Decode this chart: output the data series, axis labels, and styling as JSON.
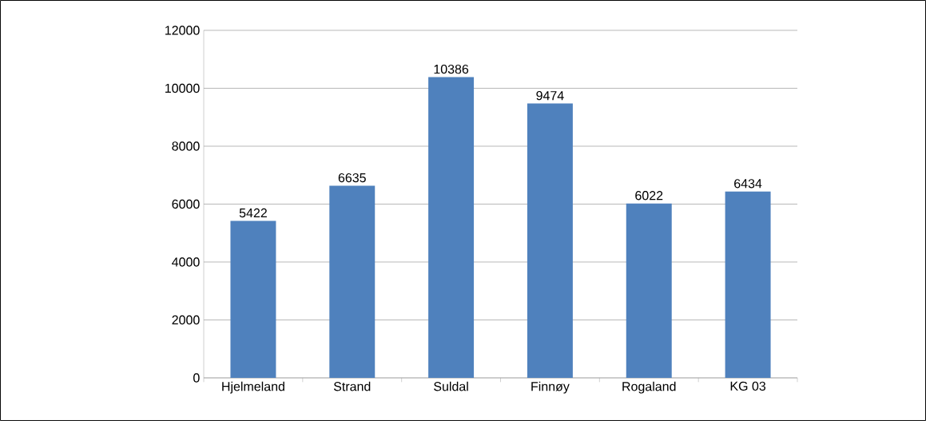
{
  "chart_data": {
    "type": "bar",
    "categories": [
      "Hjelmeland",
      "Strand",
      "Suldal",
      "Finnøy",
      "Rogaland",
      "KG 03"
    ],
    "values": [
      5422,
      6635,
      10386,
      9474,
      6022,
      6434
    ],
    "color": "#4f81bd",
    "ylim": [
      0,
      12000
    ],
    "yticks": [
      0,
      2000,
      4000,
      6000,
      8000,
      10000,
      12000
    ],
    "grid": "y",
    "data_labels": true
  }
}
